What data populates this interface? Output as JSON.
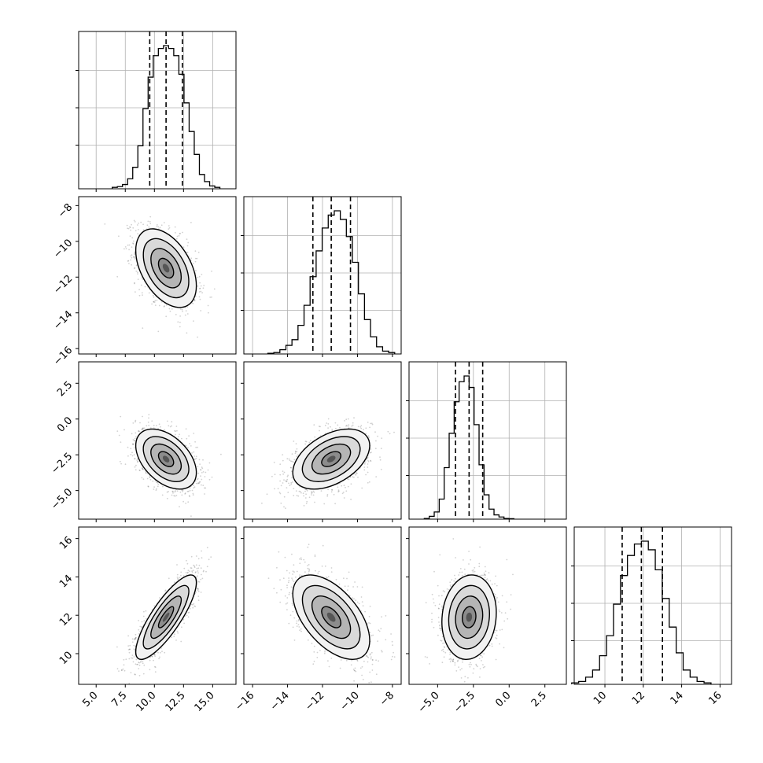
{
  "chart_data": {
    "type": "corner",
    "parameters": [
      {
        "range": [
          3.5,
          17
        ],
        "median": 11.0,
        "q16": 9.6,
        "q84": 12.4,
        "ticks": [
          5,
          7.5,
          10,
          12.5,
          15
        ],
        "tick_labels": [
          "5.0",
          "7.5",
          "10.0",
          "12.5",
          "15.0"
        ]
      },
      {
        "range": [
          -16.5,
          -7.5
        ],
        "median": -11.5,
        "q16": -12.55,
        "q84": -10.4,
        "ticks": [
          -16,
          -14,
          -12,
          -10,
          -8
        ],
        "tick_labels": [
          "−16",
          "−14",
          "−12",
          "−10",
          "−8"
        ]
      },
      {
        "range": [
          -7,
          4
        ],
        "median": -2.8,
        "q16": -3.75,
        "q84": -1.85,
        "ticks": [
          -5,
          -2.5,
          0,
          2.5
        ],
        "tick_labels": [
          "−5.0",
          "−2.5",
          "0.0",
          "2.5"
        ]
      },
      {
        "range": [
          8.4,
          16.6
        ],
        "median": 11.9,
        "q16": 10.9,
        "q84": 13.0,
        "ticks": [
          10,
          12,
          14,
          16
        ],
        "tick_labels": [
          "10",
          "12",
          "14",
          "16"
        ]
      }
    ],
    "row_ticks": {
      "1": {
        "ticks": [
          -8,
          -10,
          -12,
          -14,
          -16
        ],
        "tick_labels": [
          "−8",
          "−10",
          "−12",
          "−14",
          "−16"
        ],
        "range": [
          -16.3,
          -7.5
        ]
      },
      "2": {
        "ticks": [
          2.5,
          0,
          -2.5,
          -5
        ],
        "tick_labels": [
          "2.5",
          "0.0",
          "−2.5",
          "−5.0"
        ],
        "range": [
          -7,
          4
        ]
      },
      "3": {
        "ticks": [
          16,
          14,
          12,
          10
        ],
        "tick_labels": [
          "16",
          "14",
          "12",
          "10"
        ],
        "range": [
          8.4,
          16.6
        ]
      }
    },
    "histograms": [
      {
        "param": 0,
        "counts": [
          0.01,
          0.015,
          0.03,
          0.07,
          0.15,
          0.3,
          0.56,
          0.78,
          0.93,
          0.98,
          1.0,
          0.98,
          0.93,
          0.8,
          0.6,
          0.4,
          0.24,
          0.1,
          0.05,
          0.02,
          0.01
        ]
      },
      {
        "param": 1,
        "counts": [
          0.005,
          0.01,
          0.03,
          0.06,
          0.1,
          0.2,
          0.34,
          0.54,
          0.72,
          0.88,
          0.97,
          1.0,
          0.94,
          0.82,
          0.64,
          0.42,
          0.24,
          0.12,
          0.05,
          0.02,
          0.01
        ]
      },
      {
        "param": 2,
        "counts": [
          0.005,
          0.02,
          0.05,
          0.14,
          0.36,
          0.6,
          0.82,
          0.96,
          1.0,
          0.92,
          0.66,
          0.38,
          0.17,
          0.07,
          0.03,
          0.015,
          0.005,
          0.003
        ]
      },
      {
        "param": 3,
        "counts": [
          0.01,
          0.02,
          0.05,
          0.1,
          0.2,
          0.34,
          0.56,
          0.76,
          0.9,
          0.98,
          1.0,
          0.94,
          0.8,
          0.6,
          0.4,
          0.22,
          0.1,
          0.05,
          0.02,
          0.01
        ]
      }
    ],
    "pairs": [
      {
        "row": 1,
        "col": 0,
        "mean": [
          11.0,
          -11.5
        ],
        "sd": [
          1.3,
          1.1
        ],
        "rho": -0.45
      },
      {
        "row": 2,
        "col": 0,
        "mean": [
          11.0,
          -2.8
        ],
        "sd": [
          1.3,
          1.05
        ],
        "rho": -0.45
      },
      {
        "row": 2,
        "col": 1,
        "mean": [
          -11.5,
          -2.8
        ],
        "sd": [
          1.1,
          1.05
        ],
        "rho": 0.45
      },
      {
        "row": 3,
        "col": 0,
        "mean": [
          11.0,
          11.9
        ],
        "sd": [
          1.3,
          1.1
        ],
        "rho": 0.82
      },
      {
        "row": 3,
        "col": 1,
        "mean": [
          -11.5,
          11.9
        ],
        "sd": [
          1.1,
          1.1
        ],
        "rho": -0.55
      },
      {
        "row": 3,
        "col": 2,
        "mean": [
          -2.8,
          11.9
        ],
        "sd": [
          0.95,
          1.1
        ],
        "rho": 0.1
      }
    ],
    "contour_levels_sigma": [
      0.5,
      1.0,
      1.5,
      2.0
    ],
    "grid": true,
    "colors": {
      "line": "#000000",
      "grid": "#b0b0b0",
      "points": "#000000"
    }
  }
}
